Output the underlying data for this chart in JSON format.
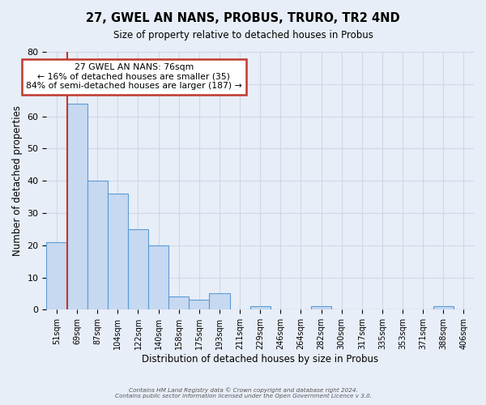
{
  "title": "27, GWEL AN NANS, PROBUS, TRURO, TR2 4ND",
  "subtitle": "Size of property relative to detached houses in Probus",
  "xlabel": "Distribution of detached houses by size in Probus",
  "ylabel": "Number of detached properties",
  "bar_labels": [
    "51sqm",
    "69sqm",
    "87sqm",
    "104sqm",
    "122sqm",
    "140sqm",
    "158sqm",
    "175sqm",
    "193sqm",
    "211sqm",
    "229sqm",
    "246sqm",
    "264sqm",
    "282sqm",
    "300sqm",
    "317sqm",
    "335sqm",
    "353sqm",
    "371sqm",
    "388sqm",
    "406sqm"
  ],
  "bar_values": [
    21,
    64,
    40,
    36,
    25,
    20,
    4,
    3,
    5,
    0,
    1,
    0,
    0,
    1,
    0,
    0,
    0,
    0,
    0,
    1,
    0
  ],
  "bar_color": "#c6d9f0",
  "bar_edge_color": "#5b9bd5",
  "vline_color": "#c0392b",
  "annotation_text": "27 GWEL AN NANS: 76sqm\n← 16% of detached houses are smaller (35)\n84% of semi-detached houses are larger (187) →",
  "annotation_box_color": "#ffffff",
  "annotation_box_edge_color": "#c0392b",
  "ylim": [
    0,
    80
  ],
  "yticks": [
    0,
    10,
    20,
    30,
    40,
    50,
    60,
    70,
    80
  ],
  "grid_color": "#d0d8e8",
  "background_color": "#e8eef7",
  "footer_line1": "Contains HM Land Registry data © Crown copyright and database right 2024.",
  "footer_line2": "Contains public sector information licensed under the Open Government Licence v 3.0."
}
